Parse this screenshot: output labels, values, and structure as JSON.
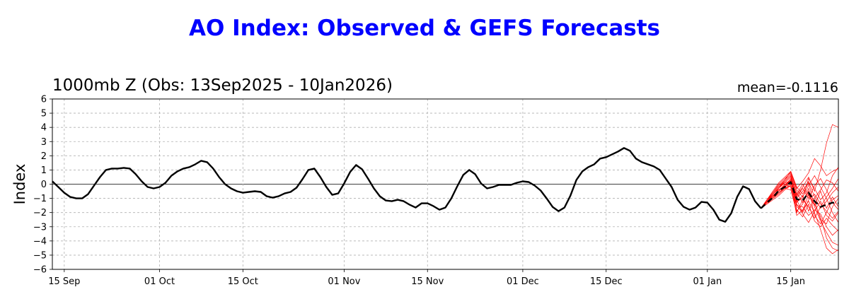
{
  "page": {
    "title": "AO Index: Observed & GEFS Forecasts",
    "subtitle": "1000mb Z (Obs: 13Sep2025 - 10Jan2026)",
    "mean_label": "mean=-0.1116"
  },
  "chart_data": {
    "type": "line",
    "title": "AO Index: Observed & GEFS Forecasts",
    "subtitle": "1000mb Z (Obs: 13Sep2025 - 10Jan2026)",
    "annotation": "mean=-0.1116",
    "ylabel": "Index",
    "xlabel": "",
    "ylim": [
      -6,
      6
    ],
    "yticks": [
      -6,
      -5,
      -4,
      -3,
      -2,
      -1,
      0,
      1,
      2,
      3,
      4,
      5,
      6
    ],
    "xlim": [
      "2025-09-13",
      "2026-01-23"
    ],
    "xticks": [
      {
        "date": "2025-09-15",
        "label": "15 Sep"
      },
      {
        "date": "2025-10-01",
        "label": "01 Oct"
      },
      {
        "date": "2025-10-15",
        "label": "15 Oct"
      },
      {
        "date": "2025-11-01",
        "label": "01 Nov"
      },
      {
        "date": "2025-11-15",
        "label": "15 Nov"
      },
      {
        "date": "2025-12-01",
        "label": "01 Dec"
      },
      {
        "date": "2025-12-15",
        "label": "15 Dec"
      },
      {
        "date": "2026-01-01",
        "label": "01 Jan"
      },
      {
        "date": "2026-01-15",
        "label": "15 Jan"
      }
    ],
    "grid": true,
    "colors": {
      "observed": "#000000",
      "members": "#ff0000",
      "ensemble_mean": "#000000",
      "title": "#0000ff"
    },
    "series": [
      {
        "id": "observed",
        "style": "solid",
        "points": [
          [
            "2025-09-13",
            0.2
          ],
          [
            "2025-09-14",
            -0.2
          ],
          [
            "2025-09-15",
            -0.6
          ],
          [
            "2025-09-16",
            -0.9
          ],
          [
            "2025-09-17",
            -1.0
          ],
          [
            "2025-09-18",
            -1.0
          ],
          [
            "2025-09-19",
            -0.7
          ],
          [
            "2025-09-20",
            -0.1
          ],
          [
            "2025-09-21",
            0.5
          ],
          [
            "2025-09-22",
            1.0
          ],
          [
            "2025-09-23",
            1.1
          ],
          [
            "2025-09-24",
            1.1
          ],
          [
            "2025-09-25",
            1.15
          ],
          [
            "2025-09-26",
            1.1
          ],
          [
            "2025-09-27",
            0.7
          ],
          [
            "2025-09-28",
            0.2
          ],
          [
            "2025-09-29",
            -0.2
          ],
          [
            "2025-09-30",
            -0.3
          ],
          [
            "2025-10-01",
            -0.2
          ],
          [
            "2025-10-02",
            0.1
          ],
          [
            "2025-10-03",
            0.6
          ],
          [
            "2025-10-04",
            0.9
          ],
          [
            "2025-10-05",
            1.1
          ],
          [
            "2025-10-06",
            1.2
          ],
          [
            "2025-10-07",
            1.4
          ],
          [
            "2025-10-08",
            1.65
          ],
          [
            "2025-10-09",
            1.55
          ],
          [
            "2025-10-10",
            1.1
          ],
          [
            "2025-10-11",
            0.5
          ],
          [
            "2025-10-12",
            0.0
          ],
          [
            "2025-10-13",
            -0.3
          ],
          [
            "2025-10-14",
            -0.5
          ],
          [
            "2025-10-15",
            -0.6
          ],
          [
            "2025-10-16",
            -0.55
          ],
          [
            "2025-10-17",
            -0.5
          ],
          [
            "2025-10-18",
            -0.55
          ],
          [
            "2025-10-19",
            -0.85
          ],
          [
            "2025-10-20",
            -0.95
          ],
          [
            "2025-10-21",
            -0.85
          ],
          [
            "2025-10-22",
            -0.65
          ],
          [
            "2025-10-23",
            -0.55
          ],
          [
            "2025-10-24",
            -0.25
          ],
          [
            "2025-10-25",
            0.35
          ],
          [
            "2025-10-26",
            1.0
          ],
          [
            "2025-10-27",
            1.1
          ],
          [
            "2025-10-28",
            0.5
          ],
          [
            "2025-10-29",
            -0.2
          ],
          [
            "2025-10-30",
            -0.75
          ],
          [
            "2025-10-31",
            -0.65
          ],
          [
            "2025-11-01",
            0.05
          ],
          [
            "2025-11-02",
            0.85
          ],
          [
            "2025-11-03",
            1.35
          ],
          [
            "2025-11-04",
            1.05
          ],
          [
            "2025-11-05",
            0.4
          ],
          [
            "2025-11-06",
            -0.3
          ],
          [
            "2025-11-07",
            -0.85
          ],
          [
            "2025-11-08",
            -1.15
          ],
          [
            "2025-11-09",
            -1.2
          ],
          [
            "2025-11-10",
            -1.1
          ],
          [
            "2025-11-11",
            -1.2
          ],
          [
            "2025-11-12",
            -1.45
          ],
          [
            "2025-11-13",
            -1.65
          ],
          [
            "2025-11-14",
            -1.35
          ],
          [
            "2025-11-15",
            -1.35
          ],
          [
            "2025-11-16",
            -1.55
          ],
          [
            "2025-11-17",
            -1.8
          ],
          [
            "2025-11-18",
            -1.65
          ],
          [
            "2025-11-19",
            -1.0
          ],
          [
            "2025-11-20",
            -0.15
          ],
          [
            "2025-11-21",
            0.65
          ],
          [
            "2025-11-22",
            1.0
          ],
          [
            "2025-11-23",
            0.7
          ],
          [
            "2025-11-24",
            0.05
          ],
          [
            "2025-11-25",
            -0.3
          ],
          [
            "2025-11-26",
            -0.2
          ],
          [
            "2025-11-27",
            -0.05
          ],
          [
            "2025-11-28",
            -0.05
          ],
          [
            "2025-11-29",
            -0.05
          ],
          [
            "2025-11-30",
            0.1
          ],
          [
            "2025-12-01",
            0.2
          ],
          [
            "2025-12-02",
            0.15
          ],
          [
            "2025-12-03",
            -0.1
          ],
          [
            "2025-12-04",
            -0.45
          ],
          [
            "2025-12-05",
            -1.0
          ],
          [
            "2025-12-06",
            -1.6
          ],
          [
            "2025-12-07",
            -1.9
          ],
          [
            "2025-12-08",
            -1.65
          ],
          [
            "2025-12-09",
            -0.8
          ],
          [
            "2025-12-10",
            0.3
          ],
          [
            "2025-12-11",
            0.9
          ],
          [
            "2025-12-12",
            1.2
          ],
          [
            "2025-12-13",
            1.4
          ],
          [
            "2025-12-14",
            1.8
          ],
          [
            "2025-12-15",
            1.9
          ],
          [
            "2025-12-16",
            2.1
          ],
          [
            "2025-12-17",
            2.3
          ],
          [
            "2025-12-18",
            2.55
          ],
          [
            "2025-12-19",
            2.35
          ],
          [
            "2025-12-20",
            1.8
          ],
          [
            "2025-12-21",
            1.55
          ],
          [
            "2025-12-22",
            1.4
          ],
          [
            "2025-12-23",
            1.25
          ],
          [
            "2025-12-24",
            1.0
          ],
          [
            "2025-12-25",
            0.4
          ],
          [
            "2025-12-26",
            -0.2
          ],
          [
            "2025-12-27",
            -1.1
          ],
          [
            "2025-12-28",
            -1.6
          ],
          [
            "2025-12-29",
            -1.8
          ],
          [
            "2025-12-30",
            -1.65
          ],
          [
            "2025-12-31",
            -1.25
          ],
          [
            "2026-01-01",
            -1.3
          ],
          [
            "2026-01-02",
            -1.8
          ],
          [
            "2026-01-03",
            -2.5
          ],
          [
            "2026-01-04",
            -2.65
          ],
          [
            "2026-01-05",
            -2.05
          ],
          [
            "2026-01-06",
            -0.9
          ],
          [
            "2026-01-07",
            -0.15
          ],
          [
            "2026-01-08",
            -0.35
          ],
          [
            "2026-01-09",
            -1.2
          ],
          [
            "2026-01-10",
            -1.7
          ]
        ]
      },
      {
        "id": "ensemble-mean",
        "style": "dashed",
        "points": [
          [
            "2026-01-10",
            -1.7
          ],
          [
            "2026-01-11",
            -1.3
          ],
          [
            "2026-01-12",
            -0.95
          ],
          [
            "2026-01-13",
            -0.45
          ],
          [
            "2026-01-14",
            -0.2
          ],
          [
            "2026-01-15",
            0.15
          ],
          [
            "2026-01-16",
            -1.05
          ],
          [
            "2026-01-17",
            -1.15
          ],
          [
            "2026-01-18",
            -0.6
          ],
          [
            "2026-01-19",
            -1.2
          ],
          [
            "2026-01-20",
            -1.6
          ],
          [
            "2026-01-21",
            -1.45
          ],
          [
            "2026-01-22",
            -1.3
          ],
          [
            "2026-01-23",
            -1.35
          ]
        ]
      }
    ],
    "ensemble": {
      "start": "2026-01-10",
      "members": [
        [
          -1.7,
          -1.1,
          -0.5,
          0.1,
          0.5,
          0.9,
          -0.3,
          0.2,
          0.8,
          1.8,
          1.3,
          0.6,
          0.9,
          1.1
        ],
        [
          -1.7,
          -1.2,
          -0.7,
          -0.2,
          0.2,
          0.6,
          -0.8,
          -0.2,
          0.5,
          -0.5,
          1.0,
          2.9,
          4.2,
          4.0
        ],
        [
          -1.7,
          -1.3,
          -0.9,
          -0.5,
          -0.1,
          0.3,
          -1.6,
          -1.9,
          -0.7,
          -1.4,
          -2.3,
          -3.8,
          -4.5,
          -4.7
        ],
        [
          -1.7,
          -1.4,
          -1.0,
          -0.6,
          -0.3,
          0.0,
          -2.2,
          -1.8,
          -1.2,
          -2.0,
          -3.2,
          -4.5,
          -4.9,
          -4.6
        ],
        [
          -1.7,
          -1.2,
          -0.8,
          -0.4,
          -0.1,
          0.4,
          -1.0,
          -0.5,
          0.2,
          -0.9,
          -1.7,
          -1.2,
          -0.6,
          -0.2
        ],
        [
          -1.7,
          -1.1,
          -0.6,
          -0.1,
          0.3,
          0.7,
          -0.6,
          -1.3,
          -0.3,
          -2.2,
          -2.8,
          -2.0,
          -1.1,
          -0.8
        ],
        [
          -1.7,
          -1.3,
          -0.9,
          -0.3,
          0.1,
          0.2,
          -1.3,
          -0.8,
          -1.9,
          -1.0,
          -0.4,
          0.3,
          0.1,
          -0.5
        ],
        [
          -1.7,
          -1.2,
          -0.8,
          -0.5,
          0.0,
          -0.2,
          -1.8,
          -2.3,
          -1.4,
          -2.6,
          -3.0,
          -2.4,
          -2.9,
          -3.3
        ],
        [
          -1.7,
          -1.3,
          -1.0,
          -0.6,
          -0.2,
          0.1,
          -0.7,
          0.0,
          -0.8,
          -1.5,
          -0.5,
          -1.7,
          -0.9,
          -1.6
        ],
        [
          -1.7,
          -1.2,
          -0.7,
          -0.2,
          0.1,
          0.5,
          -1.2,
          -1.0,
          0.4,
          -0.3,
          -1.1,
          -0.6,
          0.6,
          1.2
        ],
        [
          -1.7,
          -1.4,
          -1.1,
          -0.8,
          -0.4,
          -0.1,
          -1.5,
          -1.6,
          -2.2,
          -1.8,
          -2.1,
          -3.0,
          -3.6,
          -3.2
        ],
        [
          -1.7,
          -1.1,
          -0.6,
          0.0,
          0.4,
          0.8,
          -0.4,
          -0.9,
          -0.1,
          0.6,
          -0.2,
          -1.0,
          -2.0,
          -2.7
        ],
        [
          -1.7,
          -1.3,
          -0.8,
          -0.4,
          -0.2,
          0.3,
          -1.9,
          -1.4,
          -0.5,
          -1.2,
          -2.5,
          -2.8,
          -1.6,
          -1.0
        ],
        [
          -1.7,
          -1.2,
          -0.9,
          -0.5,
          0.0,
          0.2,
          -1.1,
          -2.0,
          -1.1,
          -0.7,
          -1.4,
          -1.9,
          -2.4,
          -1.9
        ],
        [
          -1.7,
          -1.3,
          -0.9,
          -0.6,
          -0.3,
          -0.4,
          -2.0,
          -1.1,
          -1.6,
          -2.4,
          -1.6,
          -0.9,
          -0.3,
          0.4
        ],
        [
          -1.7,
          -1.2,
          -0.7,
          -0.3,
          0.2,
          0.6,
          -0.9,
          -0.3,
          -1.0,
          -0.1,
          0.4,
          -0.4,
          -1.3,
          -1.8
        ],
        [
          -1.7,
          -1.1,
          -0.7,
          -0.2,
          0.3,
          0.9,
          -0.2,
          -0.7,
          0.1,
          -1.6,
          -2.6,
          -3.4,
          -4.1,
          -4.3
        ],
        [
          -1.7,
          -1.3,
          -1.0,
          -0.7,
          -0.3,
          -0.1,
          -1.4,
          -2.1,
          -2.7,
          -1.9,
          -1.2,
          -2.2,
          -2.6,
          -2.0
        ]
      ]
    }
  }
}
